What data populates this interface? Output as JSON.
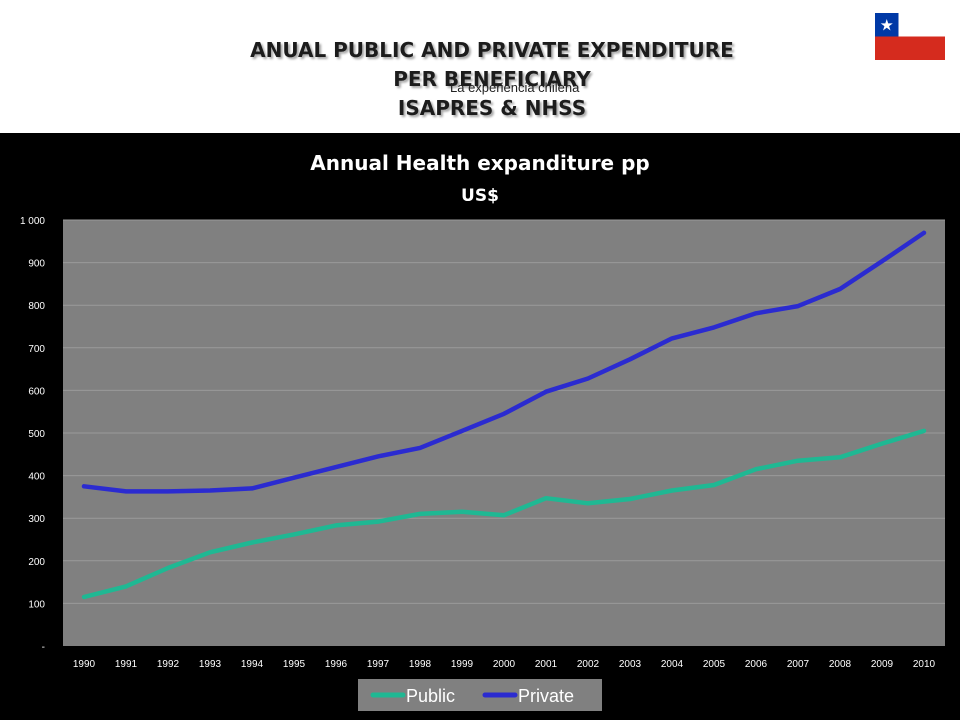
{
  "slide": {
    "title_lines": [
      "ANUAL PUBLIC AND PRIVATE EXPENDITURE",
      "PER BENEFICIARY",
      "ISAPRES & NHSS"
    ],
    "overlay_text": "La experiencia chilena"
  },
  "flag": {
    "icon": "chile-flag-icon",
    "colors": {
      "blue": "#0039a6",
      "white": "#ffffff",
      "red": "#d52b1e",
      "star": "#ffffff"
    }
  },
  "colors": {
    "public": "#1fb893",
    "private": "#2b2bd0",
    "plot_bg": "#808080",
    "page_bg": "#000000",
    "text": "#ffffff"
  },
  "chart_data": {
    "type": "line",
    "title": "Annual Health expanditure pp",
    "subtitle": "US$",
    "x": [
      "1990",
      "1991",
      "1992",
      "1993",
      "1994",
      "1995",
      "1996",
      "1997",
      "1998",
      "1999",
      "2000",
      "2001",
      "2002",
      "2003",
      "2004",
      "2005",
      "2006",
      "2007",
      "2008",
      "2009",
      "2010"
    ],
    "y_ticks": [
      "-",
      "100",
      "200",
      "300",
      "400",
      "500",
      "600",
      "700",
      "800",
      "900",
      "1 000"
    ],
    "ylim": [
      0,
      1000
    ],
    "grid": true,
    "legend_position": "bottom-center",
    "series": [
      {
        "name": "Public",
        "values": [
          115,
          140,
          183,
          220,
          243,
          262,
          283,
          292,
          310,
          315,
          307,
          347,
          335,
          345,
          365,
          378,
          415,
          435,
          443,
          475,
          505
        ]
      },
      {
        "name": "Private",
        "values": [
          375,
          363,
          363,
          365,
          370,
          395,
          420,
          445,
          465,
          505,
          545,
          597,
          628,
          673,
          722,
          748,
          781,
          798,
          838,
          903,
          970
        ]
      }
    ]
  }
}
